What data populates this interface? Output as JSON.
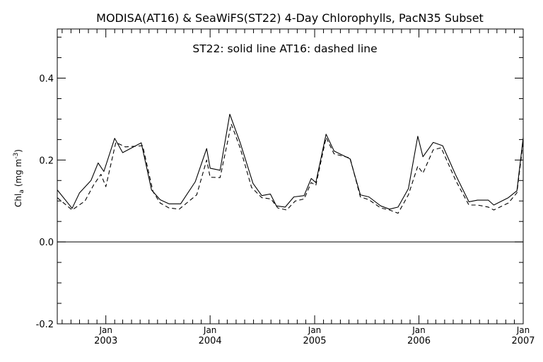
{
  "chart_data": {
    "type": "line",
    "title": "MODISA(AT16) & SeaWiFS(ST22) 4-Day Chlorophylls, PacN35 Subset",
    "annotation": "ST22: solid line   AT16: dashed line",
    "ylabel_main": "Chl",
    "ylabel_sub": "a",
    "ylabel_unit": "(mg m",
    "ylabel_exp": "-3",
    "ylabel_close": ")",
    "xlabel": "",
    "ylim": [
      -0.2,
      0.52
    ],
    "xlim": [
      "2002-07-15",
      "2007-01-01"
    ],
    "yticks": [
      {
        "value": -0.2,
        "label": "-0.2"
      },
      {
        "value": 0.0,
        "label": "0.0"
      },
      {
        "value": 0.2,
        "label": "0.2"
      },
      {
        "value": 0.4,
        "label": "0.4"
      }
    ],
    "xticks": [
      {
        "date": "2003-01-01",
        "month": "Jan",
        "year": "2003"
      },
      {
        "date": "2004-01-01",
        "month": "Jan",
        "year": "2004"
      },
      {
        "date": "2005-01-01",
        "month": "Jan",
        "year": "2005"
      },
      {
        "date": "2006-01-01",
        "month": "Jan",
        "year": "2006"
      },
      {
        "date": "2007-01-01",
        "month": "Jan",
        "year": "2007"
      }
    ],
    "reference_line": 0.0,
    "grid": false,
    "series": [
      {
        "name": "ST22",
        "style": "solid",
        "color": "#000000",
        "points": [
          [
            "2002-07-15",
            0.127
          ],
          [
            "2002-09-05",
            0.082
          ],
          [
            "2002-10-01",
            0.12
          ],
          [
            "2002-11-10",
            0.15
          ],
          [
            "2002-12-05",
            0.193
          ],
          [
            "2002-12-25",
            0.172
          ],
          [
            "2003-02-01",
            0.253
          ],
          [
            "2003-03-01",
            0.218
          ],
          [
            "2003-05-05",
            0.242
          ],
          [
            "2003-06-10",
            0.127
          ],
          [
            "2003-07-10",
            0.103
          ],
          [
            "2003-08-10",
            0.093
          ],
          [
            "2003-09-20",
            0.093
          ],
          [
            "2003-11-10",
            0.147
          ],
          [
            "2003-12-20",
            0.228
          ],
          [
            "2004-01-01",
            0.18
          ],
          [
            "2004-02-05",
            0.175
          ],
          [
            "2004-03-10",
            0.312
          ],
          [
            "2004-04-15",
            0.243
          ],
          [
            "2004-05-30",
            0.143
          ],
          [
            "2004-06-30",
            0.113
          ],
          [
            "2004-07-30",
            0.117
          ],
          [
            "2004-08-20",
            0.088
          ],
          [
            "2004-09-20",
            0.085
          ],
          [
            "2004-10-20",
            0.11
          ],
          [
            "2004-11-25",
            0.113
          ],
          [
            "2004-12-20",
            0.155
          ],
          [
            "2005-01-05",
            0.145
          ],
          [
            "2005-02-10",
            0.263
          ],
          [
            "2005-03-10",
            0.222
          ],
          [
            "2005-05-05",
            0.203
          ],
          [
            "2005-06-10",
            0.115
          ],
          [
            "2005-07-10",
            0.11
          ],
          [
            "2005-08-20",
            0.088
          ],
          [
            "2005-09-20",
            0.08
          ],
          [
            "2005-10-20",
            0.085
          ],
          [
            "2005-11-25",
            0.13
          ],
          [
            "2005-12-28",
            0.258
          ],
          [
            "2006-01-15",
            0.208
          ],
          [
            "2006-02-20",
            0.243
          ],
          [
            "2006-03-25",
            0.235
          ],
          [
            "2006-05-10",
            0.163
          ],
          [
            "2006-06-25",
            0.098
          ],
          [
            "2006-07-25",
            0.102
          ],
          [
            "2006-09-01",
            0.102
          ],
          [
            "2006-09-20",
            0.09
          ],
          [
            "2006-11-10",
            0.108
          ],
          [
            "2006-12-10",
            0.125
          ],
          [
            "2007-01-01",
            0.255
          ]
        ]
      },
      {
        "name": "AT16",
        "style": "dashed",
        "color": "#000000",
        "points": [
          [
            "2002-07-15",
            0.108
          ],
          [
            "2002-09-05",
            0.078
          ],
          [
            "2002-10-20",
            0.1
          ],
          [
            "2002-11-20",
            0.14
          ],
          [
            "2002-12-15",
            0.165
          ],
          [
            "2003-01-01",
            0.135
          ],
          [
            "2003-02-05",
            0.243
          ],
          [
            "2003-03-10",
            0.232
          ],
          [
            "2003-05-10",
            0.235
          ],
          [
            "2003-06-15",
            0.123
          ],
          [
            "2003-07-10",
            0.095
          ],
          [
            "2003-08-10",
            0.083
          ],
          [
            "2003-09-15",
            0.08
          ],
          [
            "2003-11-15",
            0.115
          ],
          [
            "2003-12-20",
            0.2
          ],
          [
            "2004-01-01",
            0.158
          ],
          [
            "2004-02-05",
            0.157
          ],
          [
            "2004-03-15",
            0.288
          ],
          [
            "2004-04-15",
            0.23
          ],
          [
            "2004-05-25",
            0.133
          ],
          [
            "2004-06-30",
            0.108
          ],
          [
            "2004-08-01",
            0.105
          ],
          [
            "2004-08-25",
            0.083
          ],
          [
            "2004-09-25",
            0.078
          ],
          [
            "2004-10-25",
            0.1
          ],
          [
            "2004-11-25",
            0.105
          ],
          [
            "2004-12-20",
            0.145
          ],
          [
            "2005-01-05",
            0.138
          ],
          [
            "2005-02-10",
            0.255
          ],
          [
            "2005-03-10",
            0.215
          ],
          [
            "2005-05-05",
            0.205
          ],
          [
            "2005-06-10",
            0.11
          ],
          [
            "2005-07-10",
            0.103
          ],
          [
            "2005-08-20",
            0.083
          ],
          [
            "2005-09-20",
            0.078
          ],
          [
            "2005-10-20",
            0.07
          ],
          [
            "2005-11-25",
            0.115
          ],
          [
            "2005-12-28",
            0.185
          ],
          [
            "2006-01-15",
            0.168
          ],
          [
            "2006-02-20",
            0.225
          ],
          [
            "2006-03-20",
            0.23
          ],
          [
            "2006-05-10",
            0.15
          ],
          [
            "2006-06-25",
            0.09
          ],
          [
            "2006-07-25",
            0.09
          ],
          [
            "2006-09-01",
            0.085
          ],
          [
            "2006-09-20",
            0.078
          ],
          [
            "2006-11-10",
            0.095
          ],
          [
            "2006-12-10",
            0.12
          ],
          [
            "2007-01-01",
            0.245
          ]
        ]
      }
    ]
  }
}
